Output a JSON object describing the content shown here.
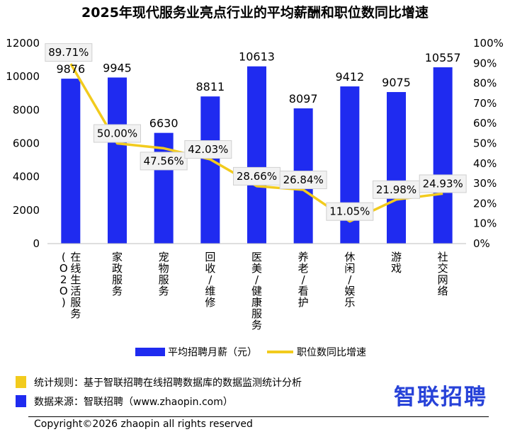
{
  "chart_data": {
    "type": "bar",
    "title": "2025年现代服务业亮点行业的平均薪酬和职位数同比增速",
    "categories": [
      "在线生活服务（O2O）",
      "家政服务",
      "宠物服务",
      "回收/维修",
      "医美/健康服务",
      "养老/看护",
      "休闲/娱乐",
      "游戏",
      "社交网络"
    ],
    "series": [
      {
        "name": "平均招聘月薪（元）",
        "type": "bar",
        "axis": "left",
        "color": "#1f2bf0",
        "values": [
          9876,
          9945,
          6630,
          8811,
          10613,
          8097,
          9412,
          9075,
          10557
        ]
      },
      {
        "name": "职位数同比增速",
        "type": "line",
        "axis": "right",
        "color": "#f2cb1d",
        "values": [
          89.71,
          50.0,
          47.56,
          42.03,
          28.66,
          26.84,
          11.05,
          21.98,
          24.93
        ],
        "labels": [
          "89.71%",
          "50.00%",
          "47.56%",
          "42.03%",
          "28.66%",
          "26.84%",
          "11.05%",
          "21.98%",
          "24.93%"
        ]
      }
    ],
    "y_left": {
      "min": 0,
      "max": 12000,
      "ticks": [
        "0",
        "2000",
        "4000",
        "6000",
        "8000",
        "10000",
        "12000"
      ]
    },
    "y_right": {
      "min": 0,
      "max": 100,
      "ticks": [
        "0%",
        "10%",
        "20%",
        "30%",
        "40%",
        "50%",
        "60%",
        "70%",
        "80%",
        "90%",
        "100%"
      ]
    },
    "grid": false,
    "legend_position": "bottom"
  },
  "footer": {
    "rule_text": "统计规则：基于智联招聘在线招聘数据库的数据监测统计分析",
    "source_text": "数据来源：智联招聘（www.zhaopin.com）",
    "copyright": "Copyright©2026 zhaopin all rights reserved",
    "brand": "智联招聘",
    "rule_color": "#f2cb1d",
    "source_color": "#1f2bf0"
  }
}
